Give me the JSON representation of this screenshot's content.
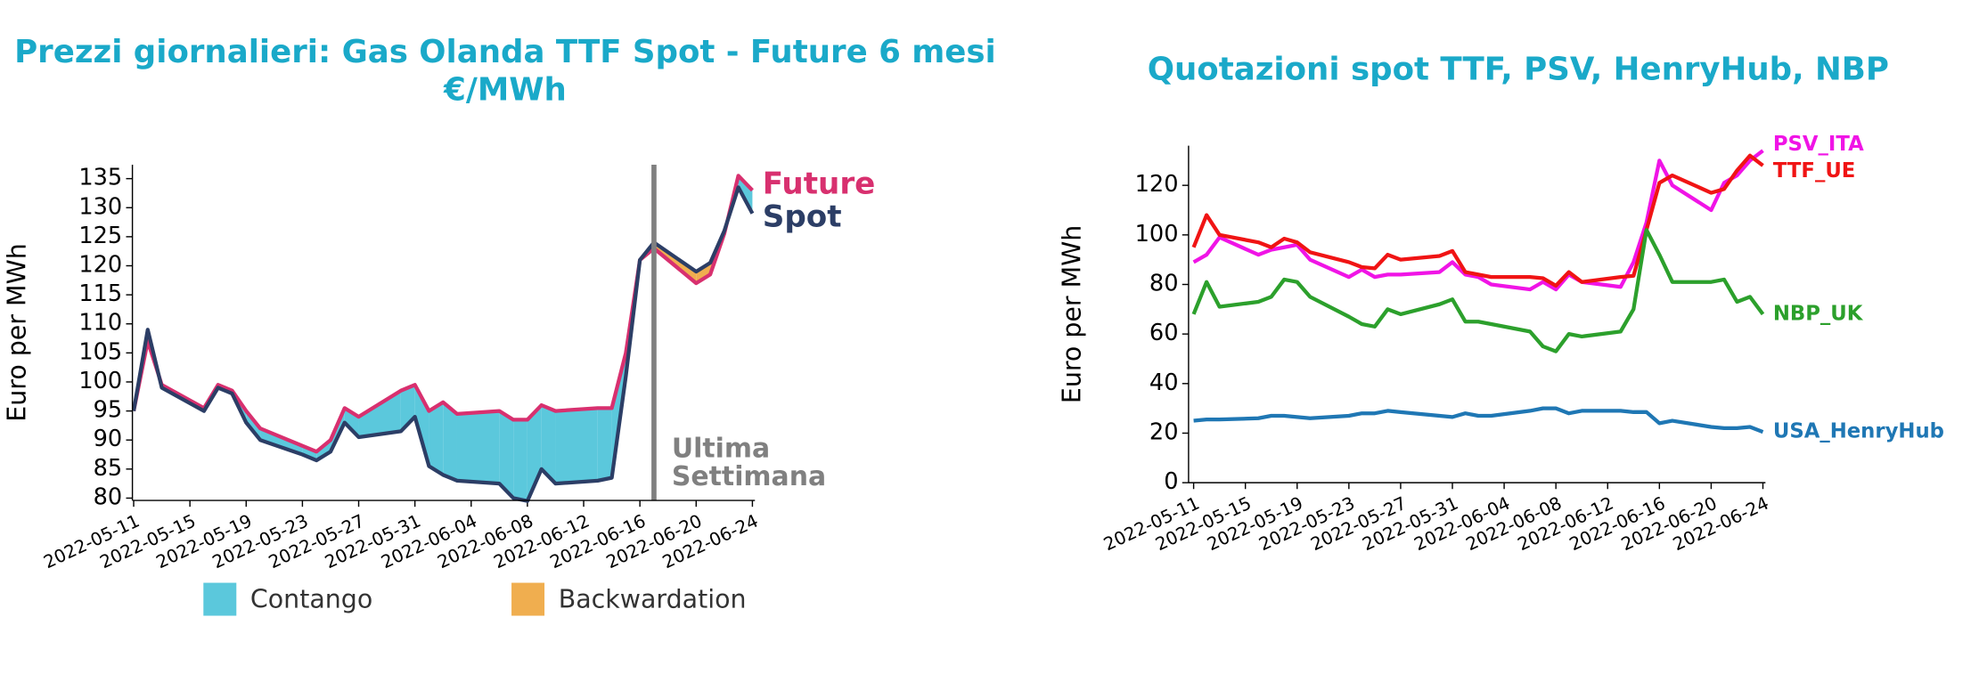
{
  "chart_data": [
    {
      "type": "line",
      "title": [
        "Prezzi giornalieri: Gas Olanda TTF Spot - Future 6 mesi",
        "€/MWh"
      ],
      "title_color": "#1aa9c9",
      "y_label": "Euro per MWh",
      "x": [
        "2022-05-11",
        "2022-05-12",
        "2022-05-13",
        "2022-05-16",
        "2022-05-17",
        "2022-05-18",
        "2022-05-19",
        "2022-05-20",
        "2022-05-23",
        "2022-05-24",
        "2022-05-25",
        "2022-05-26",
        "2022-05-27",
        "2022-05-30",
        "2022-05-31",
        "2022-06-01",
        "2022-06-02",
        "2022-06-03",
        "2022-06-06",
        "2022-06-07",
        "2022-06-08",
        "2022-06-09",
        "2022-06-10",
        "2022-06-13",
        "2022-06-14",
        "2022-06-15",
        "2022-06-16",
        "2022-06-17",
        "2022-06-20",
        "2022-06-21",
        "2022-06-22",
        "2022-06-23",
        "2022-06-24"
      ],
      "series": [
        {
          "name": "Future",
          "color": "#d8306f",
          "values": [
            95,
            107,
            99.5,
            95.5,
            99.5,
            98.5,
            95,
            92,
            89,
            88,
            90,
            95.5,
            94,
            98.5,
            99.5,
            95,
            96.5,
            94.5,
            95,
            93.5,
            93.5,
            96,
            95,
            95.5,
            95.5,
            105,
            121,
            123,
            117,
            118.5,
            125.5,
            135.5,
            133
          ]
        },
        {
          "name": "Spot",
          "color": "#2c3e66",
          "values": [
            95,
            109,
            99,
            95,
            99,
            98,
            93,
            90,
            87.5,
            86.5,
            88,
            93,
            90.5,
            91.5,
            94,
            85.5,
            84,
            83,
            82.5,
            80,
            79.5,
            85,
            82.5,
            83,
            83.5,
            101,
            121,
            124,
            119,
            120.5,
            126,
            133.5,
            129
          ]
        }
      ],
      "fill_between": [
        {
          "name": "Contango",
          "color": "#5bc8dc"
        },
        {
          "name": "Backwardation",
          "color": "#f0ae4f"
        }
      ],
      "vline": {
        "x": "2022-06-17",
        "color": "#808080",
        "label": [
          "Ultima",
          "Settimana"
        ]
      },
      "xlim": [
        "2022-05-11",
        "2022-06-24"
      ],
      "xticks": [
        "2022-05-11",
        "2022-05-15",
        "2022-05-19",
        "2022-05-23",
        "2022-05-27",
        "2022-05-31",
        "2022-06-04",
        "2022-06-08",
        "2022-06-12",
        "2022-06-16",
        "2022-06-20",
        "2022-06-24"
      ],
      "ylim": [
        79.6,
        137.4
      ],
      "yticks": [
        80,
        85,
        90,
        95,
        100,
        105,
        110,
        115,
        120,
        125,
        130,
        135
      ]
    },
    {
      "type": "line",
      "title": [
        "Quotazioni spot TTF, PSV, HenryHub, NBP"
      ],
      "title_color": "#1aa9c9",
      "y_label": "Euro per MWh",
      "x": [
        "2022-05-11",
        "2022-05-12",
        "2022-05-13",
        "2022-05-16",
        "2022-05-17",
        "2022-05-18",
        "2022-05-19",
        "2022-05-20",
        "2022-05-23",
        "2022-05-24",
        "2022-05-25",
        "2022-05-26",
        "2022-05-27",
        "2022-05-30",
        "2022-05-31",
        "2022-06-01",
        "2022-06-02",
        "2022-06-03",
        "2022-06-06",
        "2022-06-07",
        "2022-06-08",
        "2022-06-09",
        "2022-06-10",
        "2022-06-13",
        "2022-06-14",
        "2022-06-15",
        "2022-06-16",
        "2022-06-17",
        "2022-06-20",
        "2022-06-21",
        "2022-06-22",
        "2022-06-23",
        "2022-06-24"
      ],
      "series": [
        {
          "name": "PSV_ITA",
          "color": "#f014e6",
          "values": [
            89,
            92,
            99,
            92,
            94,
            95,
            96,
            90,
            83,
            86,
            83,
            84,
            84,
            85,
            89,
            84,
            83,
            80,
            78,
            81,
            78,
            84,
            81,
            79,
            89,
            105,
            130,
            120,
            110,
            121,
            124,
            130,
            134
          ]
        },
        {
          "name": "TTF_UE",
          "color": "#f01414",
          "values": [
            95,
            108,
            100,
            97,
            95,
            98.5,
            97,
            93,
            89,
            87,
            86.5,
            92,
            90,
            91.5,
            93.5,
            85,
            84,
            83,
            83,
            82.5,
            79.5,
            85,
            81,
            83,
            83.5,
            102,
            121,
            124,
            117,
            118.5,
            126,
            132,
            128
          ]
        },
        {
          "name": "NBP_UK",
          "color": "#2ca02c",
          "values": [
            68,
            81,
            71,
            73,
            75,
            82,
            81,
            75,
            67,
            64,
            63,
            70,
            68,
            72,
            74,
            65,
            65,
            64,
            61,
            55,
            53,
            60,
            59,
            61,
            70,
            102,
            92,
            81,
            81,
            82,
            73,
            75,
            68
          ]
        },
        {
          "name": "USA_HenryHub",
          "color": "#1f77b4",
          "values": [
            25,
            25.5,
            25.5,
            26,
            27,
            27,
            26.5,
            26,
            27,
            28,
            28,
            29,
            28.5,
            27,
            26.5,
            28,
            27,
            27,
            29,
            30,
            30,
            28,
            29,
            29,
            28.5,
            28.5,
            24,
            25,
            22.5,
            22,
            22,
            22.5,
            20.5
          ]
        }
      ],
      "xlim": [
        "2022-05-11",
        "2022-06-24"
      ],
      "xticks": [
        "2022-05-11",
        "2022-05-15",
        "2022-05-19",
        "2022-05-23",
        "2022-05-27",
        "2022-05-31",
        "2022-06-04",
        "2022-06-08",
        "2022-06-12",
        "2022-06-16",
        "2022-06-20",
        "2022-06-24"
      ],
      "ylim": [
        0,
        136
      ],
      "yticks": [
        0,
        20,
        40,
        60,
        80,
        100,
        120
      ]
    }
  ]
}
